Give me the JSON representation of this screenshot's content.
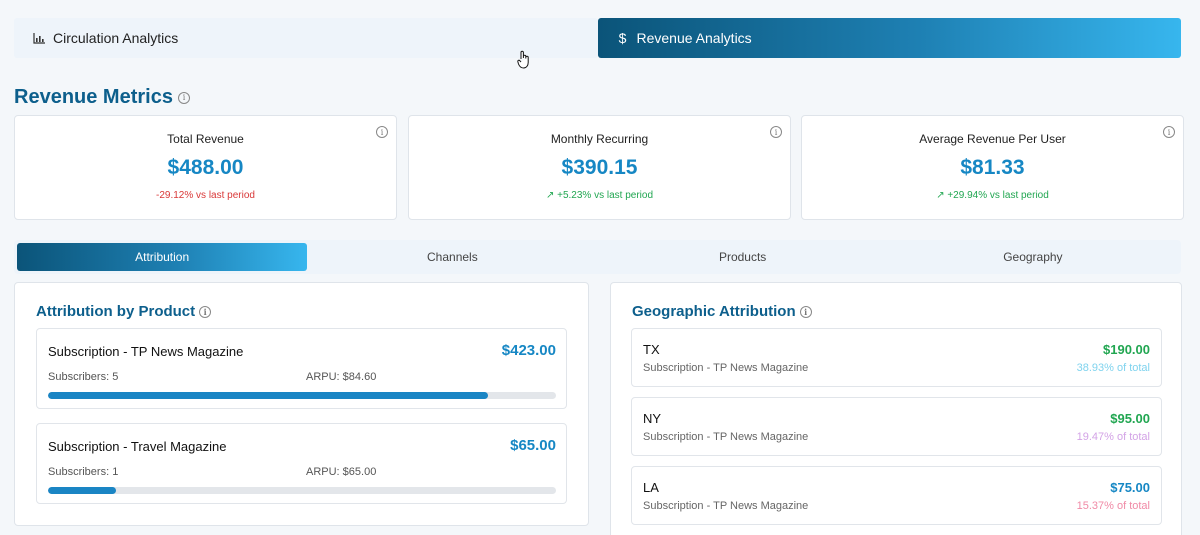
{
  "top_tabs": [
    {
      "label": "Circulation Analytics",
      "icon": "bar-chart-icon",
      "active": false
    },
    {
      "label": "Revenue Analytics",
      "icon": "dollar-icon",
      "active": true
    }
  ],
  "section": {
    "title": "Revenue Metrics"
  },
  "metrics": [
    {
      "label": "Total Revenue",
      "value": "$488.00",
      "delta": "-29.12% vs last period",
      "trend": "down"
    },
    {
      "label": "Monthly Recurring",
      "value": "$390.15",
      "delta": "↗ +5.23% vs last period",
      "trend": "up"
    },
    {
      "label": "Average Revenue Per User",
      "value": "$81.33",
      "delta": "↗ +29.94% vs last period",
      "trend": "up"
    }
  ],
  "sub_tabs": [
    {
      "label": "Attribution",
      "active": true
    },
    {
      "label": "Channels",
      "active": false
    },
    {
      "label": "Products",
      "active": false
    },
    {
      "label": "Geography",
      "active": false
    }
  ],
  "product_panel": {
    "title": "Attribution by Product",
    "items": [
      {
        "name": "Subscription - TP News Magazine",
        "amount": "$423.00",
        "subscribers": "Subscribers: 5",
        "arpu": "ARPU: $84.60",
        "share": 0.867
      },
      {
        "name": "Subscription - Travel Magazine",
        "amount": "$65.00",
        "subscribers": "Subscribers: 1",
        "arpu": "ARPU: $65.00",
        "share": 0.133
      }
    ]
  },
  "geo_panel": {
    "title": "Geographic Attribution",
    "items": [
      {
        "region": "TX",
        "product": "Subscription - TP News Magazine",
        "amount": "$190.00",
        "percent": "38.93% of total",
        "amount_color": "#21a651",
        "percent_color": "#7fd3ee"
      },
      {
        "region": "NY",
        "product": "Subscription - TP News Magazine",
        "amount": "$95.00",
        "percent": "19.47% of total",
        "amount_color": "#21a651",
        "percent_color": "#d3a3e6"
      },
      {
        "region": "LA",
        "product": "Subscription - TP News Magazine",
        "amount": "$75.00",
        "percent": "15.37% of total",
        "amount_color": "#1687c4",
        "percent_color": "#f08aa6"
      }
    ]
  }
}
